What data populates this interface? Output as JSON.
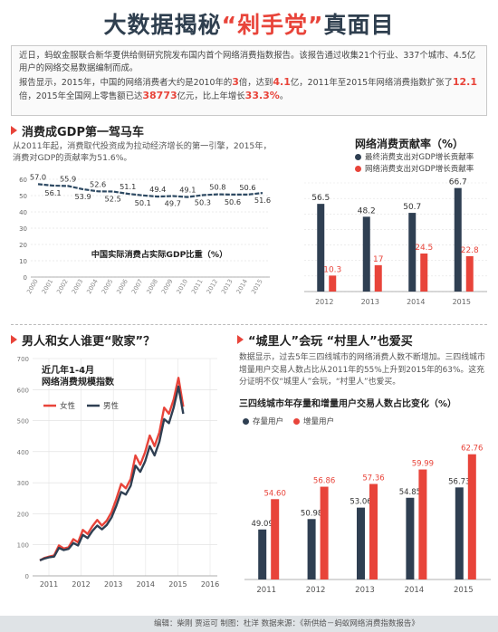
{
  "title": {
    "prefix": "大数据揭秘",
    "highlight": "“剁手党”",
    "suffix": "真面目"
  },
  "intro": {
    "p1": "近日，蚂蚁金服联合新华夏供给侧研究院发布国内首个网络消费指数报告。该报告通过收集21个行业、337个城市、4.5亿用户的网络交易数据编制而成。",
    "p2_a": "报告显示，2015年，中国的网络消费者大约是2010年的",
    "p2_n1": "3",
    "p2_b": "倍，达到",
    "p2_n2": "4.1",
    "p2_c": "亿，2011年至2015年网络消费指数扩张了",
    "p2_n3": "12.1",
    "p2_d": "倍，2015年全国网上零售额已达",
    "p2_n4": "38773",
    "p2_e": "亿元，比上年增长",
    "p2_n5": "33.3%",
    "p2_f": "。"
  },
  "section1": {
    "heading": "消费成GDP第一驾马车",
    "desc": "从2011年起，消费取代投资成为拉动经济增长的第一引擎，2015年，消费对GDP的贡献率为51.6%。",
    "chart_label": "中国实际消费占实际GDP比重（%）"
  },
  "section2": {
    "heading": "网络消费贡献率（%）",
    "legend": [
      "最终消费支出对GDP增长贡献率",
      "网络消费支出对GDP增长贡献率"
    ]
  },
  "section3": {
    "heading": "男人和女人谁更“败家”？",
    "chart_title_1": "近几年1-4月",
    "chart_title_2": "网络消费规模指数",
    "legend": [
      "女性",
      "男性"
    ]
  },
  "section4": {
    "heading": "“城里人”会玩 “村里人”也爱买",
    "desc": "数据显示，过去5年三四线城市的网络消费人数不断增加。三四线城市增量用户交易人数占比从2011年的55%上升到2015年的63%。这充分证明不仅“城里人”会玩，“村里人”也爱买。",
    "chart_title": "三四线城市年存量和增量用户交易人数占比变化（%）",
    "legend": [
      "存量用户",
      "增量用户"
    ]
  },
  "footer": "编辑：柴刚  贾运可    制图：杜洋    数据来源：《新供给－蚂蚁网络消费指数报告》",
  "colors": {
    "navy": "#2f3f52",
    "red": "#e8443a",
    "line_blue": "#2e4a63"
  },
  "chart_data": [
    {
      "type": "line",
      "label": "中国实际消费占实际GDP比重（%）",
      "x": [
        "2000",
        "2001",
        "2002",
        "2003",
        "2004",
        "2005",
        "2006",
        "2007",
        "2008",
        "2009",
        "2010",
        "2011",
        "2012",
        "2013",
        "2014",
        "2015"
      ],
      "values": [
        57.0,
        56.1,
        55.9,
        53.9,
        52.6,
        52.5,
        51.1,
        50.1,
        49.4,
        49.7,
        49.1,
        50.3,
        50.8,
        50.6,
        50.6,
        51.6
      ],
      "ylim": [
        0,
        60
      ],
      "yticks": [
        "60",
        "50",
        "40",
        "30",
        "20",
        "10",
        "0"
      ]
    },
    {
      "type": "bar",
      "title": "网络消费贡献率（%）",
      "categories": [
        "2012",
        "2013",
        "2014",
        "2015"
      ],
      "series": [
        {
          "name": "最终消费支出对GDP增长贡献率",
          "values": [
            56.5,
            48.2,
            50.7,
            66.7
          ]
        },
        {
          "name": "网络消费支出对GDP增长贡献率",
          "values": [
            10.3,
            17,
            24.5,
            22.8
          ]
        }
      ],
      "ylim": [
        0,
        70
      ]
    },
    {
      "type": "line",
      "title": "近几年1-4月 网络消费规模指数",
      "x_ticks": [
        "2011",
        "2012",
        "2013",
        "2014",
        "2015",
        "2016"
      ],
      "series": [
        {
          "name": "女性",
          "values": [
            50,
            58,
            62,
            66,
            98,
            88,
            92,
            118,
            108,
            148,
            135,
            160,
            180,
            162,
            178,
            205,
            248,
            296,
            282,
            312,
            388,
            358,
            398,
            452,
            418,
            462,
            542,
            522,
            568,
            638,
            545
          ]
        },
        {
          "name": "男性",
          "values": [
            50,
            56,
            60,
            62,
            90,
            83,
            87,
            106,
            98,
            132,
            122,
            145,
            162,
            150,
            164,
            188,
            226,
            270,
            262,
            290,
            355,
            335,
            368,
            418,
            388,
            432,
            505,
            492,
            542,
            610,
            522
          ]
        }
      ],
      "ylim": [
        0,
        700
      ],
      "yticks": [
        "700",
        "600",
        "500",
        "400",
        "300",
        "200",
        "100",
        "0"
      ]
    },
    {
      "type": "bar",
      "title": "三四线城市年存量和增量用户交易人数占比变化（%）",
      "categories": [
        "2011",
        "2012",
        "2013",
        "2014",
        "2015"
      ],
      "series": [
        {
          "name": "存量用户",
          "values": [
            49.09,
            50.98,
            53.06,
            54.85,
            56.73
          ]
        },
        {
          "name": "增量用户",
          "values": [
            54.6,
            56.86,
            57.36,
            59.99,
            62.76
          ]
        }
      ]
    }
  ]
}
